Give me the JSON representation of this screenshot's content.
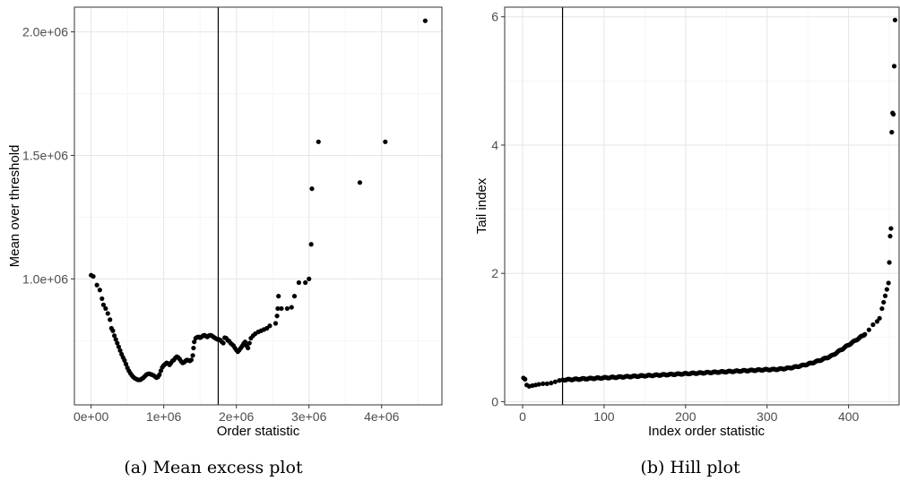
{
  "chart_data": [
    {
      "type": "scatter",
      "title": "",
      "caption": "(a) Mean excess plot",
      "xlabel": "Order statistic",
      "ylabel": "Mean over threshold",
      "xlim": [
        -230000,
        4830000
      ],
      "ylim": [
        490000,
        2100000
      ],
      "x_ticks": [
        0,
        1000000,
        2000000,
        3000000,
        4000000
      ],
      "x_tick_labels": [
        "0e+00",
        "1e+06",
        "2e+06",
        "3e+06",
        "4e+06"
      ],
      "y_ticks": [
        1000000,
        1500000,
        2000000
      ],
      "y_tick_labels": [
        "1.0e+06",
        "1.5e+06",
        "2.0e+06"
      ],
      "vline_x": 1750000,
      "grid": true,
      "points": [
        [
          0,
          1015000
        ],
        [
          30000,
          1010000
        ],
        [
          80000,
          975000
        ],
        [
          120000,
          955000
        ],
        [
          150000,
          920000
        ],
        [
          170000,
          895000
        ],
        [
          200000,
          880000
        ],
        [
          230000,
          860000
        ],
        [
          260000,
          835000
        ],
        [
          280000,
          800000
        ],
        [
          300000,
          790000
        ],
        [
          320000,
          770000
        ],
        [
          340000,
          755000
        ],
        [
          360000,
          740000
        ],
        [
          380000,
          725000
        ],
        [
          400000,
          710000
        ],
        [
          420000,
          695000
        ],
        [
          440000,
          682000
        ],
        [
          460000,
          670000
        ],
        [
          480000,
          655000
        ],
        [
          500000,
          640000
        ],
        [
          520000,
          628000
        ],
        [
          540000,
          618000
        ],
        [
          560000,
          610000
        ],
        [
          580000,
          603000
        ],
        [
          600000,
          598000
        ],
        [
          620000,
          595000
        ],
        [
          640000,
          592000
        ],
        [
          660000,
          591000
        ],
        [
          680000,
          592000
        ],
        [
          700000,
          596000
        ],
        [
          720000,
          600000
        ],
        [
          740000,
          606000
        ],
        [
          760000,
          612000
        ],
        [
          780000,
          615000
        ],
        [
          800000,
          616000
        ],
        [
          820000,
          614000
        ],
        [
          840000,
          612000
        ],
        [
          860000,
          609000
        ],
        [
          880000,
          605000
        ],
        [
          900000,
          600000
        ],
        [
          920000,
          603000
        ],
        [
          940000,
          612000
        ],
        [
          960000,
          628000
        ],
        [
          980000,
          642000
        ],
        [
          1000000,
          650000
        ],
        [
          1020000,
          655000
        ],
        [
          1040000,
          660000
        ],
        [
          1060000,
          657000
        ],
        [
          1080000,
          652000
        ],
        [
          1100000,
          660000
        ],
        [
          1120000,
          668000
        ],
        [
          1140000,
          672000
        ],
        [
          1160000,
          680000
        ],
        [
          1180000,
          685000
        ],
        [
          1200000,
          682000
        ],
        [
          1220000,
          675000
        ],
        [
          1240000,
          666000
        ],
        [
          1260000,
          660000
        ],
        [
          1280000,
          662000
        ],
        [
          1300000,
          668000
        ],
        [
          1320000,
          672000
        ],
        [
          1340000,
          670000
        ],
        [
          1360000,
          668000
        ],
        [
          1380000,
          672000
        ],
        [
          1400000,
          690000
        ],
        [
          1410000,
          720000
        ],
        [
          1420000,
          745000
        ],
        [
          1440000,
          760000
        ],
        [
          1460000,
          764000
        ],
        [
          1480000,
          765000
        ],
        [
          1500000,
          762000
        ],
        [
          1520000,
          765000
        ],
        [
          1540000,
          770000
        ],
        [
          1560000,
          772000
        ],
        [
          1580000,
          768000
        ],
        [
          1600000,
          765000
        ],
        [
          1620000,
          770000
        ],
        [
          1640000,
          772000
        ],
        [
          1660000,
          770000
        ],
        [
          1680000,
          766000
        ],
        [
          1700000,
          762000
        ],
        [
          1720000,
          758000
        ],
        [
          1740000,
          755000
        ],
        [
          1760000,
          755000
        ],
        [
          1780000,
          752000
        ],
        [
          1800000,
          745000
        ],
        [
          1820000,
          740000
        ],
        [
          1840000,
          762000
        ],
        [
          1860000,
          760000
        ],
        [
          1880000,
          752000
        ],
        [
          1900000,
          748000
        ],
        [
          1920000,
          740000
        ],
        [
          1940000,
          735000
        ],
        [
          1960000,
          730000
        ],
        [
          1980000,
          720000
        ],
        [
          2000000,
          712000
        ],
        [
          2020000,
          705000
        ],
        [
          2040000,
          712000
        ],
        [
          2060000,
          720000
        ],
        [
          2080000,
          728000
        ],
        [
          2100000,
          738000
        ],
        [
          2120000,
          745000
        ],
        [
          2140000,
          730000
        ],
        [
          2160000,
          720000
        ],
        [
          2180000,
          740000
        ],
        [
          2200000,
          760000
        ],
        [
          2230000,
          770000
        ],
        [
          2260000,
          778000
        ],
        [
          2300000,
          785000
        ],
        [
          2340000,
          790000
        ],
        [
          2380000,
          795000
        ],
        [
          2420000,
          800000
        ],
        [
          2460000,
          810000
        ],
        [
          2540000,
          820000
        ],
        [
          2560000,
          850000
        ],
        [
          2570000,
          880000
        ],
        [
          2580000,
          930000
        ],
        [
          2620000,
          880000
        ],
        [
          2700000,
          880000
        ],
        [
          2760000,
          885000
        ],
        [
          2800000,
          930000
        ],
        [
          2860000,
          985000
        ],
        [
          2950000,
          985000
        ],
        [
          3000000,
          1000000
        ],
        [
          3030000,
          1140000
        ],
        [
          3040000,
          1365000
        ],
        [
          3130000,
          1555000
        ],
        [
          3700000,
          1390000
        ],
        [
          4050000,
          1555000
        ],
        [
          4600000,
          2045000
        ]
      ]
    },
    {
      "type": "scatter",
      "title": "",
      "caption": "(b) Hill plot",
      "xlabel": "Index order statistic",
      "ylabel": "Tail index",
      "xlim": [
        -22,
        462
      ],
      "ylim": [
        -0.05,
        6.15
      ],
      "x_ticks": [
        0,
        100,
        200,
        300,
        400
      ],
      "x_tick_labels": [
        "0",
        "100",
        "200",
        "300",
        "400"
      ],
      "y_ticks": [
        0,
        2,
        4,
        6
      ],
      "y_tick_labels": [
        "0",
        "2",
        "4",
        "6"
      ],
      "vline_x": 49,
      "grid": true,
      "series_shape": {
        "start_points": [
          [
            1,
            0.37
          ],
          [
            3,
            0.35
          ],
          [
            5,
            0.26
          ],
          [
            8,
            0.24
          ],
          [
            12,
            0.25
          ],
          [
            16,
            0.26
          ],
          [
            20,
            0.27
          ],
          [
            25,
            0.28
          ],
          [
            30,
            0.28
          ],
          [
            35,
            0.29
          ],
          [
            40,
            0.31
          ],
          [
            45,
            0.33
          ],
          [
            49,
            0.34
          ]
        ],
        "tail_points": [
          [
            420,
            1.05
          ],
          [
            425,
            1.12
          ],
          [
            430,
            1.2
          ],
          [
            435,
            1.25
          ],
          [
            438,
            1.3
          ],
          [
            441,
            1.45
          ],
          [
            443,
            1.55
          ],
          [
            445,
            1.65
          ],
          [
            447,
            1.75
          ],
          [
            449,
            1.85
          ],
          [
            450,
            2.17
          ],
          [
            451,
            2.58
          ],
          [
            452,
            2.7
          ],
          [
            453,
            4.2
          ],
          [
            454,
            4.5
          ],
          [
            455,
            4.48
          ],
          [
            456,
            5.23
          ],
          [
            457,
            5.95
          ]
        ]
      }
    }
  ]
}
